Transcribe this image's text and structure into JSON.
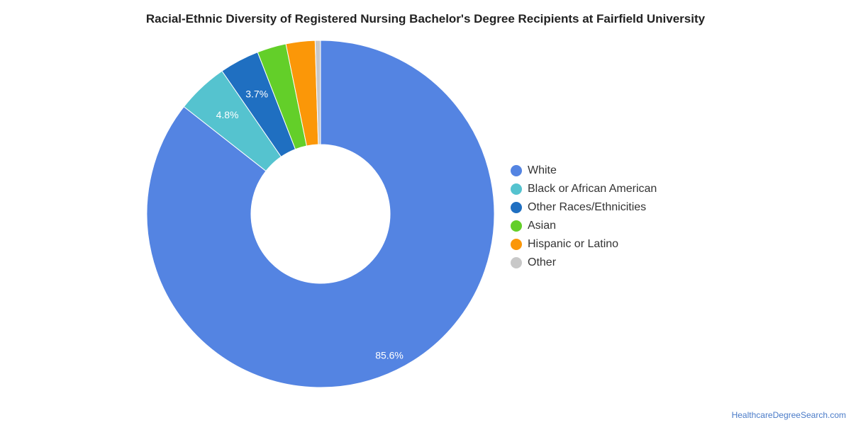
{
  "chart_data": {
    "type": "pie",
    "title": "Racial-Ethnic Diversity of Registered Nursing Bachelor's Degree Recipients at Fairfield University",
    "donut": true,
    "legend_position": "right",
    "slices": [
      {
        "label": "White",
        "value": 85.6,
        "display": "85.6%",
        "color": "#5484e2"
      },
      {
        "label": "Black or African American",
        "value": 4.8,
        "display": "4.8%",
        "color": "#55c3cf"
      },
      {
        "label": "Other Races/Ethnicities",
        "value": 3.7,
        "display": "3.7%",
        "color": "#1f6fc1"
      },
      {
        "label": "Asian",
        "value": 2.7,
        "display": "",
        "color": "#63cf29"
      },
      {
        "label": "Hispanic or Latino",
        "value": 2.7,
        "display": "",
        "color": "#fb9708"
      },
      {
        "label": "Other",
        "value": 0.5,
        "display": "",
        "color": "#c8c8c8"
      }
    ]
  },
  "attribution": "HealthcareDegreeSearch.com"
}
